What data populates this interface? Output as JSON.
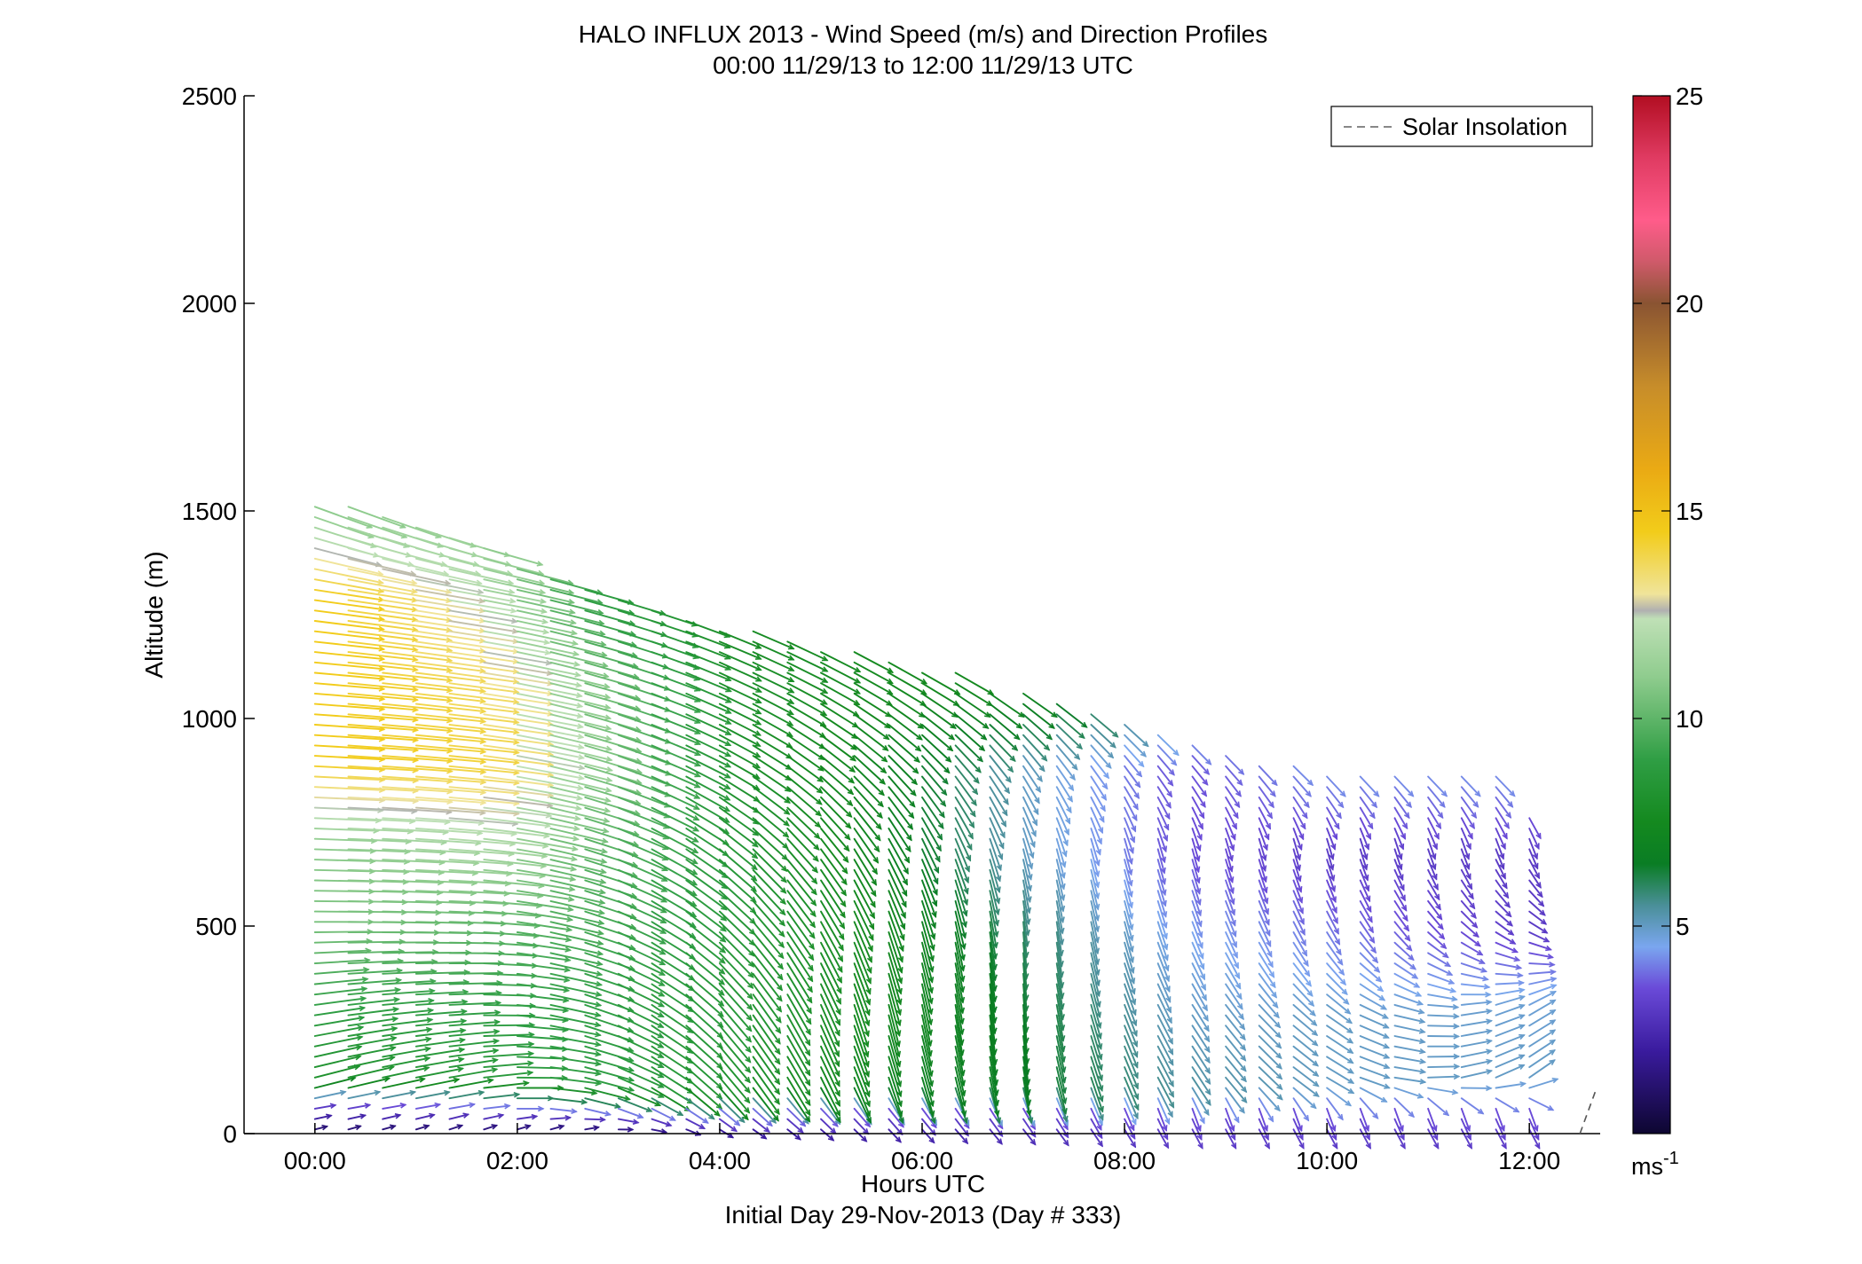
{
  "chart_data": {
    "type": "quiver",
    "title_line1": "HALO INFLUX 2013 - Wind Speed (m/s) and Direction Profiles",
    "title_line2": "00:00 11/29/13 to 12:00 11/29/13  UTC",
    "xlabel": "Hours UTC",
    "xlabel_sub": "Initial Day 29-Nov-2013 (Day # 333)",
    "ylabel": "Altitude (m)",
    "xlim": [
      -0.7,
      12.7
    ],
    "ylim": [
      0,
      2500
    ],
    "x_ticks": [
      0,
      2,
      4,
      6,
      8,
      10,
      12
    ],
    "x_tick_labels": [
      "00:00",
      "02:00",
      "04:00",
      "06:00",
      "08:00",
      "10:00",
      "12:00"
    ],
    "y_ticks": [
      0,
      500,
      1000,
      1500,
      2000,
      2500
    ],
    "y_tick_labels": [
      "0",
      "500",
      "1000",
      "1500",
      "2000",
      "2500"
    ],
    "legend": {
      "label": "Solar Insolation",
      "location": "top-right",
      "line_color": "#888888"
    },
    "colorbar": {
      "label": "ms",
      "label_superscript": "-1",
      "range": [
        0,
        25
      ],
      "ticks": [
        5,
        10,
        15,
        20,
        25
      ],
      "tick_labels": [
        "5",
        "10",
        "15",
        "20",
        "25"
      ],
      "colormap": [
        [
          0,
          "#0d0630"
        ],
        [
          2,
          "#3a1b9e"
        ],
        [
          3.5,
          "#6a4ad8"
        ],
        [
          4.5,
          "#7aa6ef"
        ],
        [
          5.5,
          "#4a8f98"
        ],
        [
          6.5,
          "#0a7d24"
        ],
        [
          7.5,
          "#14891f"
        ],
        [
          9,
          "#2f9e44"
        ],
        [
          11,
          "#8fcc8e"
        ],
        [
          12.4,
          "#bfe0b6"
        ],
        [
          12.6,
          "#b0b0b0"
        ],
        [
          13,
          "#f0e49a"
        ],
        [
          14.5,
          "#f2cc1a"
        ],
        [
          16,
          "#eaaa14"
        ],
        [
          18,
          "#c78d2a"
        ],
        [
          20,
          "#8a5432"
        ],
        [
          21,
          "#cf5a6a"
        ],
        [
          22,
          "#ff5c8a"
        ],
        [
          23.5,
          "#e03b62"
        ],
        [
          25,
          "#b20e22"
        ]
      ]
    },
    "solar_insolation": {
      "x": [
        12.5,
        12.65
      ],
      "y": [
        0,
        100
      ]
    },
    "profile_times": [
      0,
      0.33,
      0.67,
      1.0,
      1.33,
      1.67,
      2.0,
      2.33,
      2.67,
      3.0,
      3.33,
      3.67,
      4.0,
      4.33,
      4.67,
      5.0,
      5.33,
      5.67,
      6.0,
      6.33,
      6.67,
      7.0,
      7.33,
      7.67,
      8.0,
      8.33,
      8.67,
      9.0,
      9.33,
      9.67,
      10.0,
      10.33,
      10.67,
      11.0,
      11.33,
      11.67,
      12.0
    ],
    "profile_top_altitude": [
      1530,
      1520,
      1490,
      1480,
      1450,
      1420,
      1380,
      1340,
      1310,
      1290,
      1270,
      1250,
      1220,
      1210,
      1190,
      1170,
      1160,
      1140,
      1130,
      1110,
      1080,
      1060,
      1040,
      1010,
      990,
      970,
      950,
      920,
      900,
      890,
      880,
      880,
      880,
      880,
      870,
      870,
      770
    ],
    "altitude_step": 25,
    "speed_keyframes": {
      "times": [
        0,
        1.5,
        2.5,
        4,
        5.5,
        7,
        8.5,
        10,
        12
      ],
      "altitudes": [
        0,
        60,
        120,
        300,
        500,
        700,
        900,
        1100,
        1300,
        1500
      ],
      "speed": [
        [
          1.0,
          1.0,
          1.0,
          1.5,
          2.0,
          2.5,
          3.0,
          3.0,
          3.0
        ],
        [
          3.0,
          4.0,
          4.0,
          4.0,
          3.5,
          3.5,
          3.5,
          3.5,
          3.5
        ],
        [
          8.0,
          8.5,
          9.0,
          8.0,
          7.0,
          6.5,
          5.5,
          5.0,
          5.0
        ],
        [
          9.0,
          9.0,
          9.0,
          8.5,
          7.5,
          6.5,
          5.0,
          5.0,
          4.8
        ],
        [
          10.5,
          10.0,
          9.5,
          8.5,
          7.5,
          6.0,
          4.5,
          4.0,
          3.0
        ],
        [
          11.0,
          12.0,
          10.0,
          8.5,
          7.0,
          5.0,
          3.5,
          3.0,
          3.0
        ],
        [
          14.5,
          14.0,
          11.0,
          8.0,
          7.0,
          5.0,
          3.5,
          4.5,
          4.5
        ],
        [
          14.5,
          13.5,
          10.5,
          8.0,
          7.5,
          7.5,
          6.5,
          6.0,
          6.0
        ],
        [
          14.5,
          12.0,
          9.0,
          7.5,
          7.5,
          7.5,
          7.0,
          7.0,
          7.0
        ],
        [
          11.0,
          11.0,
          9.0,
          8.0,
          8.0,
          8.0,
          8.0,
          8.0,
          8.0
        ]
      ]
    },
    "direction_keyframes": {
      "times": [
        0,
        1.5,
        2.5,
        4,
        5.5,
        7,
        8.5,
        10,
        12
      ],
      "altitudes": [
        0,
        60,
        120,
        300,
        500,
        700,
        900,
        1100,
        1300,
        1500
      ],
      "direction_deg": [
        [
          255,
          250,
          250,
          300,
          315,
          320,
          330,
          330,
          330
        ],
        [
          260,
          260,
          280,
          310,
          320,
          330,
          340,
          340,
          340
        ],
        [
          255,
          260,
          280,
          320,
          340,
          350,
          330,
          300,
          235
        ],
        [
          262,
          268,
          285,
          320,
          345,
          355,
          330,
          305,
          240
        ],
        [
          270,
          272,
          285,
          315,
          340,
          355,
          340,
          330,
          300
        ],
        [
          272,
          275,
          285,
          310,
          330,
          345,
          345,
          345,
          340
        ],
        [
          273,
          276,
          285,
          300,
          315,
          325,
          320,
          310,
          310
        ],
        [
          275,
          278,
          285,
          295,
          300,
          300,
          300,
          300,
          300
        ],
        [
          278,
          280,
          285,
          290,
          295,
          295,
          295,
          295,
          295
        ],
        [
          290,
          290,
          290,
          290,
          290,
          290,
          290,
          290,
          290
        ]
      ]
    }
  }
}
